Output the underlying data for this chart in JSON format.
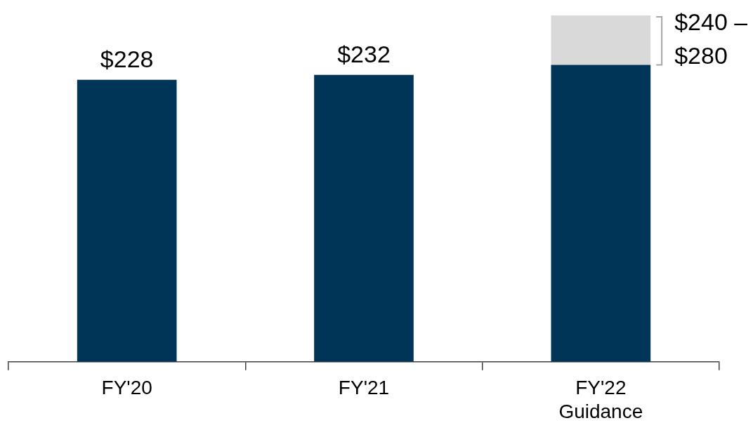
{
  "chart_data": {
    "type": "bar",
    "categories": [
      "FY'20",
      "FY'21",
      "FY'22 Guidance"
    ],
    "stacked": true,
    "legend": false,
    "grid": false,
    "series": [
      {
        "color": "#003557",
        "values": [
          228,
          232,
          240
        ],
        "value_labels": [
          "$228",
          "$232",
          null
        ]
      },
      {
        "color": "#d9d9d9",
        "values": [
          null,
          null,
          40
        ]
      }
    ],
    "annotations": [
      "$240 – $280"
    ]
  }
}
